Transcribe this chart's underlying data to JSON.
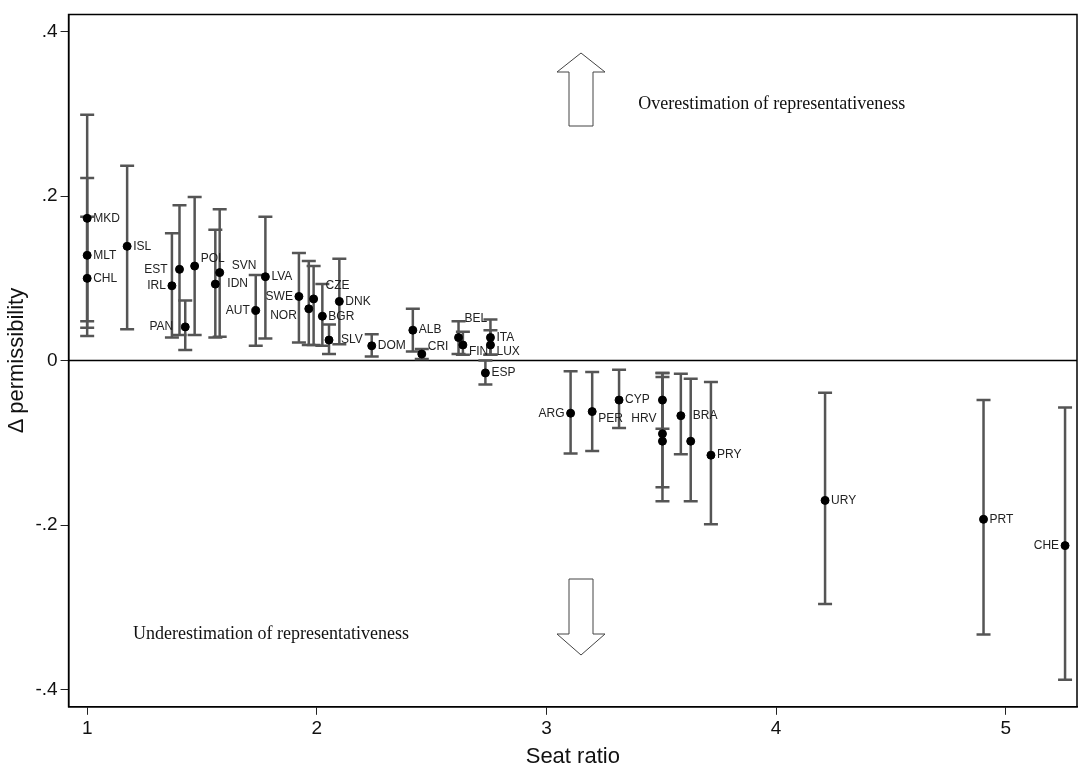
{
  "chart_data": {
    "type": "scatter",
    "xlabel": "Seat ratio",
    "ylabel": "Δ permissibility",
    "xlim": [
      0.919,
      5.31
    ],
    "xticks": [
      1,
      2,
      3,
      4,
      5
    ],
    "ylim": [
      -0.421,
      0.421
    ],
    "yticks": [
      {
        "value": -0.4,
        "label": "-.4"
      },
      {
        "value": -0.2,
        "label": "-.2"
      },
      0,
      {
        "value": 0.2,
        "label": ".2"
      },
      {
        "value": 0.4,
        "label": ".4"
      }
    ],
    "grid": false,
    "legend": false,
    "marker": "circle",
    "ref_lines": [
      {
        "axis": "y",
        "value": 0,
        "color": "#000000",
        "line_style": "solid"
      }
    ],
    "annotations": [
      "Overestimation of representativeness",
      "Underestimation of representativeness"
    ],
    "series": [
      {
        "color": "#000000",
        "x": [
          1.0,
          1.0,
          1.0,
          1.174,
          1.369,
          1.402,
          1.427,
          1.468,
          1.558,
          1.577,
          1.734,
          1.776,
          1.922,
          1.965,
          1.986,
          2.024,
          2.053,
          2.098,
          2.239,
          2.418,
          2.457,
          2.617,
          2.636,
          2.756,
          2.756,
          2.734,
          3.105,
          3.199,
          3.316,
          3.505,
          3.505,
          3.505,
          3.585,
          3.628,
          3.716,
          4.213,
          4.903,
          5.258
        ],
        "values": [
          0.173,
          0.128,
          0.1,
          0.139,
          0.091,
          0.111,
          0.041,
          0.115,
          0.093,
          0.107,
          0.061,
          0.102,
          0.078,
          0.063,
          0.075,
          0.054,
          0.025,
          0.072,
          0.018,
          0.037,
          0.008,
          0.028,
          0.019,
          0.028,
          0.019,
          -0.015,
          -0.064,
          -0.062,
          -0.048,
          -0.048,
          -0.089,
          -0.098,
          -0.067,
          -0.098,
          -0.115,
          -0.17,
          -0.193,
          -0.225
        ],
        "errors": [
          [
            0.03,
            0.299
          ],
          [
            0.04,
            0.222
          ],
          [
            0.048,
            0.175
          ],
          [
            0.038,
            0.237
          ],
          [
            0.028,
            0.155
          ],
          [
            0.031,
            0.189
          ],
          [
            0.013,
            0.073
          ],
          [
            0.031,
            0.199
          ],
          [
            0.028,
            0.159
          ],
          [
            0.029,
            0.184
          ],
          [
            0.018,
            0.104
          ],
          [
            0.027,
            0.175
          ],
          [
            0.022,
            0.131
          ],
          [
            0.019,
            0.121
          ],
          [
            0.019,
            0.115
          ],
          [
            0.018,
            0.093
          ],
          [
            0.008,
            0.044
          ],
          [
            0.02,
            0.124
          ],
          [
            0.005,
            0.032
          ],
          [
            0.011,
            0.063
          ],
          [
            0.002,
            0.014
          ],
          [
            0.008,
            0.048
          ],
          [
            0.007,
            0.035
          ],
          [
            0.007,
            0.05
          ],
          [
            0.007,
            0.037
          ],
          [
            -0.029,
            0.0
          ],
          [
            -0.113,
            -0.013
          ],
          [
            -0.11,
            -0.014
          ],
          [
            -0.082,
            -0.011
          ],
          [
            -0.083,
            -0.015
          ],
          [
            -0.154,
            -0.02
          ],
          [
            -0.171,
            -0.015
          ],
          [
            -0.114,
            -0.016
          ],
          [
            -0.171,
            -0.022
          ],
          [
            -0.199,
            -0.026
          ],
          [
            -0.296,
            -0.039
          ],
          [
            -0.333,
            -0.048
          ],
          [
            -0.388,
            -0.057
          ]
        ],
        "value_labels": [
          "MKD",
          "MLT",
          "CHL",
          "ISL",
          "IRL",
          "EST",
          "PAN",
          "POL",
          "IDN",
          "SVN",
          "AUT",
          "LVA",
          "SWE",
          "NOR",
          "CZE",
          "BGR",
          "SLV",
          "DNK",
          "DOM",
          "ALB",
          "CRI",
          "BEL",
          "FIN",
          "ITA",
          "LUX",
          "ESP",
          "ARG",
          "PER",
          "CYP",
          "HRV",
          null,
          null,
          "BRA",
          null,
          "PRY",
          "URY",
          "PRT",
          "CHE"
        ]
      }
    ]
  }
}
